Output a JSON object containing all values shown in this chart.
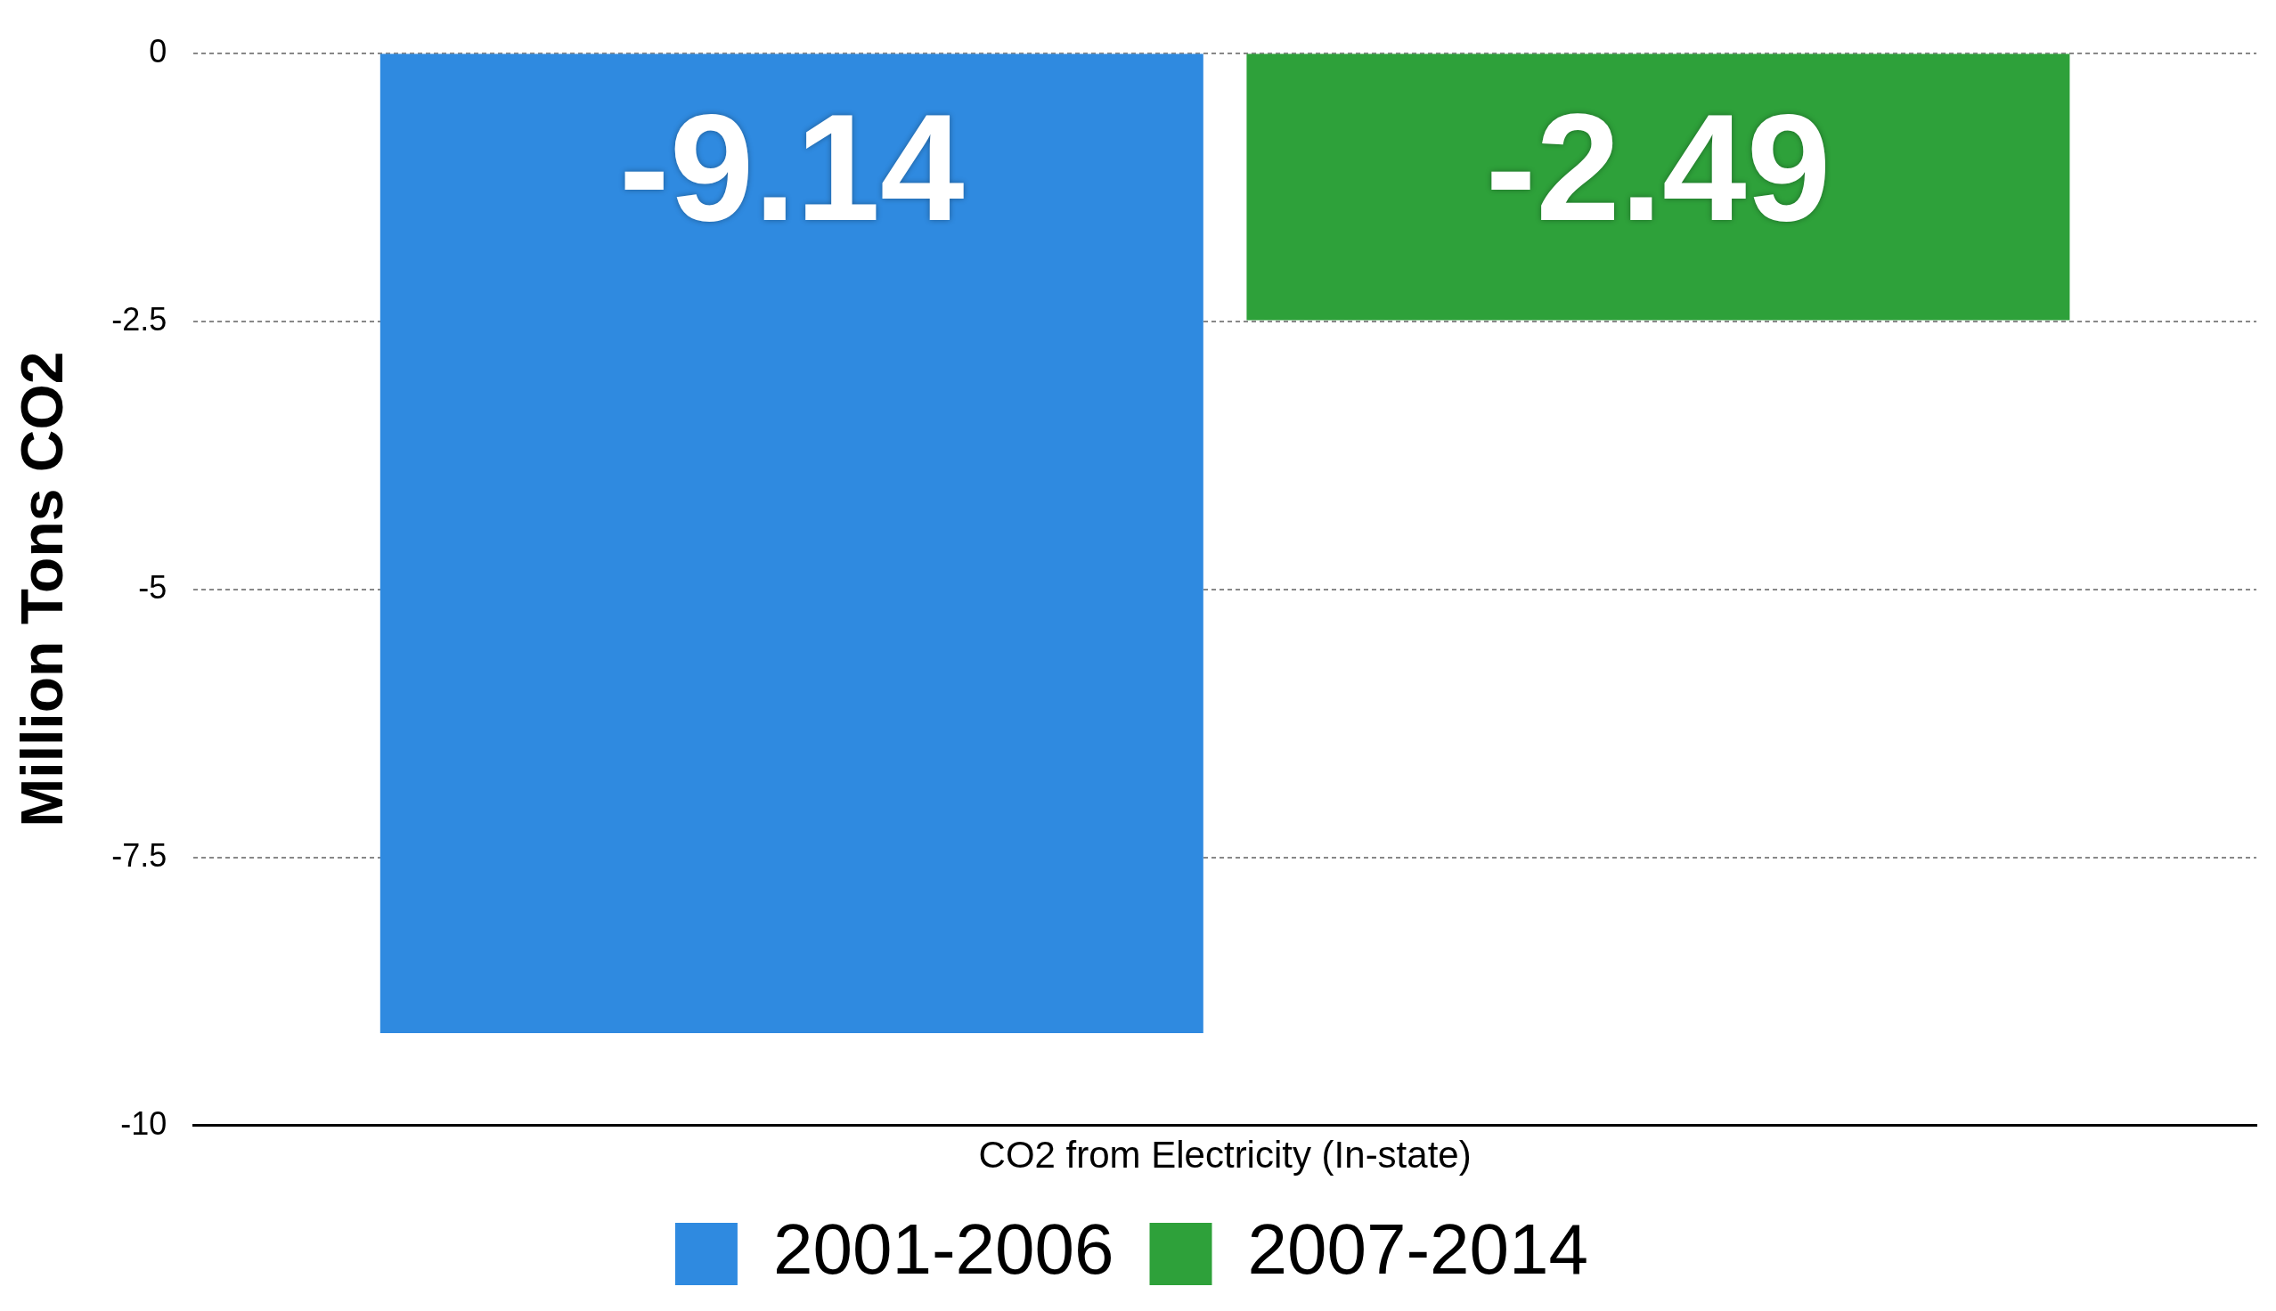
{
  "chart_data": {
    "type": "bar",
    "ylabel": "Million Tons CO2",
    "categories": [
      "CO2 from Electricity (In-state)"
    ],
    "series": [
      {
        "name": "2001-2006",
        "color": "#2f8ae0",
        "values": [
          -9.14
        ]
      },
      {
        "name": "2007-2014",
        "color": "#2ea13a",
        "values": [
          -2.49
        ]
      }
    ],
    "ylim": [
      -10,
      0
    ],
    "yticks": [
      0,
      -2.5,
      -5,
      -7.5,
      -10
    ],
    "grid": "y",
    "legend": "bottom",
    "data_labels": true
  }
}
